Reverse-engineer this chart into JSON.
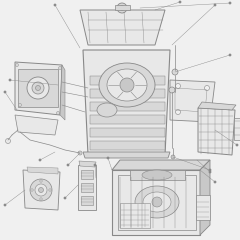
{
  "background_color": "#f0f0f0",
  "line_color": "#888888",
  "fill_light": "#e8e8e8",
  "fill_mid": "#d8d8d8",
  "fill_dark": "#c8c8c8",
  "white": "#f5f5f5",
  "fig_width": 2.4,
  "fig_height": 2.4,
  "dpi": 100
}
